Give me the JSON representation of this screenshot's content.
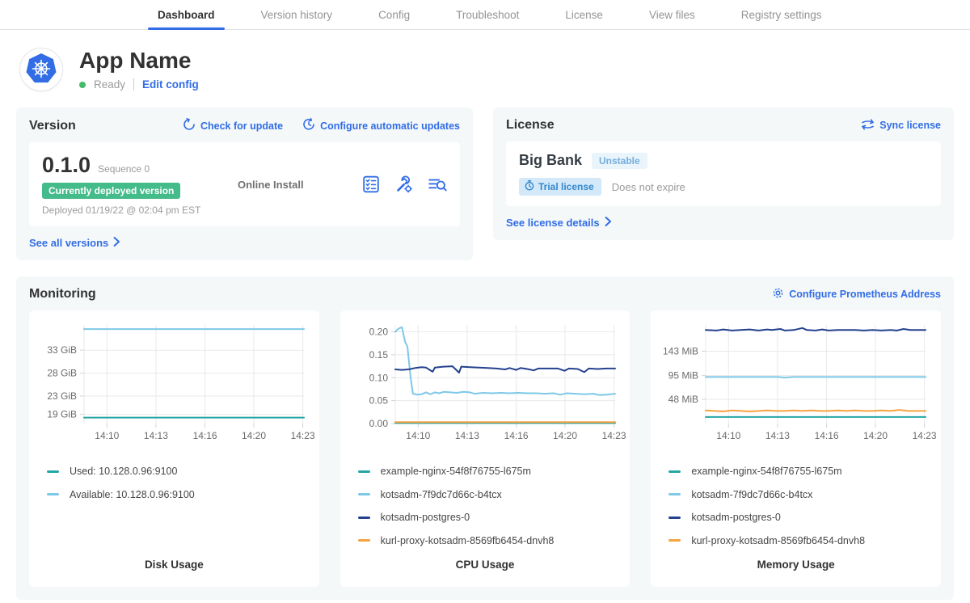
{
  "nav": {
    "tabs": [
      {
        "label": "Dashboard",
        "active": true
      },
      {
        "label": "Version history",
        "active": false
      },
      {
        "label": "Config",
        "active": false
      },
      {
        "label": "Troubleshoot",
        "active": false
      },
      {
        "label": "License",
        "active": false
      },
      {
        "label": "View files",
        "active": false
      },
      {
        "label": "Registry settings",
        "active": false
      }
    ]
  },
  "app_header": {
    "title": "App Name",
    "status": "Ready",
    "edit_config_label": "Edit config",
    "logo_icon": "kubernetes-helm-wheel"
  },
  "version_card": {
    "heading": "Version",
    "check_update_label": "Check for update",
    "configure_updates_label": "Configure automatic updates",
    "version_number": "0.1.0",
    "sequence_label": "Sequence 0",
    "deployed_badge": "Currently deployed version",
    "deployed_at": "Deployed 01/19/22 @ 02:04 pm EST",
    "install_type": "Online Install",
    "action_icons": [
      "preflight-checklist-icon",
      "wrench-gear-icon",
      "view-logs-icon"
    ],
    "see_all_label": "See all versions"
  },
  "license_card": {
    "heading": "License",
    "sync_label": "Sync license",
    "customer_name": "Big Bank",
    "channel_badge": "Unstable",
    "trial_badge": "Trial license",
    "expiry_text": "Does not expire",
    "details_label": "See license details"
  },
  "monitoring": {
    "heading": "Monitoring",
    "configure_label": "Configure Prometheus Address"
  },
  "colors": {
    "accent_blue": "#326de6",
    "status_green": "#44bb66",
    "badge_green": "#44bb8a",
    "series_teal": "#26a5a5",
    "series_light_blue": "#7ec8e8",
    "series_navy": "#24418e",
    "series_orange": "#f7a240"
  },
  "chart_data": [
    {
      "type": "line",
      "title": "Disk Usage",
      "ylim": [
        17,
        38.5
      ],
      "yticks": [
        {
          "v": 19,
          "label": "19 GiB"
        },
        {
          "v": 23,
          "label": "23 GiB"
        },
        {
          "v": 28,
          "label": "28 GiB"
        },
        {
          "v": 33,
          "label": "33 GiB"
        }
      ],
      "xticks": [
        {
          "p": 0.104,
          "label": "14:10"
        },
        {
          "p": 0.327,
          "label": "14:13"
        },
        {
          "p": 0.55,
          "label": "14:16"
        },
        {
          "p": 0.772,
          "label": "14:20"
        },
        {
          "p": 0.995,
          "label": "14:23"
        }
      ],
      "series": [
        {
          "name": "Used: 10.128.0.96:9100",
          "color": "#26a5a5",
          "points": [
            [
              0,
              18.3
            ],
            [
              1,
              18.3
            ]
          ]
        },
        {
          "name": "Available: 10.128.0.96:9100",
          "color": "#7ec8e8",
          "points": [
            [
              0,
              37.6
            ],
            [
              1,
              37.6
            ]
          ]
        }
      ]
    },
    {
      "type": "line",
      "title": "CPU Usage",
      "ylim": [
        0,
        0.215
      ],
      "yticks": [
        {
          "v": 0.0,
          "label": "0.00"
        },
        {
          "v": 0.05,
          "label": "0.05"
        },
        {
          "v": 0.1,
          "label": "0.10"
        },
        {
          "v": 0.15,
          "label": "0.15"
        },
        {
          "v": 0.2,
          "label": "0.20"
        }
      ],
      "xticks": [
        {
          "p": 0.104,
          "label": "14:10"
        },
        {
          "p": 0.327,
          "label": "14:13"
        },
        {
          "p": 0.55,
          "label": "14:16"
        },
        {
          "p": 0.772,
          "label": "14:20"
        },
        {
          "p": 0.995,
          "label": "14:23"
        }
      ],
      "series": [
        {
          "name": "example-nginx-54f8f76755-l675m",
          "color": "#26a5a5",
          "points": [
            [
              0,
              0.001
            ],
            [
              1,
              0.001
            ]
          ]
        },
        {
          "name": "kotsadm-7f9dc7d66c-b4tcx",
          "color": "#7ec8e8",
          "points": [
            [
              0,
              0.2
            ],
            [
              0.015,
              0.207
            ],
            [
              0.03,
              0.21
            ],
            [
              0.045,
              0.178
            ],
            [
              0.055,
              0.168
            ],
            [
              0.07,
              0.1
            ],
            [
              0.08,
              0.065
            ],
            [
              0.1,
              0.063
            ],
            [
              0.12,
              0.064
            ],
            [
              0.14,
              0.068
            ],
            [
              0.16,
              0.064
            ],
            [
              0.18,
              0.068
            ],
            [
              0.2,
              0.066
            ],
            [
              0.22,
              0.069
            ],
            [
              0.25,
              0.068
            ],
            [
              0.28,
              0.067
            ],
            [
              0.31,
              0.069
            ],
            [
              0.34,
              0.068
            ],
            [
              0.36,
              0.065
            ],
            [
              0.4,
              0.067
            ],
            [
              0.44,
              0.066
            ],
            [
              0.48,
              0.067
            ],
            [
              0.52,
              0.066
            ],
            [
              0.56,
              0.067
            ],
            [
              0.6,
              0.066
            ],
            [
              0.64,
              0.066
            ],
            [
              0.68,
              0.065
            ],
            [
              0.72,
              0.066
            ],
            [
              0.75,
              0.063
            ],
            [
              0.78,
              0.066
            ],
            [
              0.82,
              0.065
            ],
            [
              0.86,
              0.064
            ],
            [
              0.9,
              0.065
            ],
            [
              0.93,
              0.062
            ],
            [
              0.96,
              0.063
            ],
            [
              1,
              0.065
            ]
          ]
        },
        {
          "name": "kotsadm-postgres-0",
          "color": "#24418e",
          "points": [
            [
              0,
              0.118
            ],
            [
              0.03,
              0.117
            ],
            [
              0.06,
              0.118
            ],
            [
              0.09,
              0.121
            ],
            [
              0.12,
              0.123
            ],
            [
              0.14,
              0.122
            ],
            [
              0.17,
              0.113
            ],
            [
              0.18,
              0.122
            ],
            [
              0.22,
              0.124
            ],
            [
              0.26,
              0.125
            ],
            [
              0.29,
              0.111
            ],
            [
              0.3,
              0.124
            ],
            [
              0.34,
              0.123
            ],
            [
              0.38,
              0.122
            ],
            [
              0.42,
              0.121
            ],
            [
              0.46,
              0.12
            ],
            [
              0.5,
              0.118
            ],
            [
              0.52,
              0.121
            ],
            [
              0.55,
              0.117
            ],
            [
              0.57,
              0.121
            ],
            [
              0.6,
              0.119
            ],
            [
              0.63,
              0.116
            ],
            [
              0.65,
              0.12
            ],
            [
              0.7,
              0.12
            ],
            [
              0.74,
              0.12
            ],
            [
              0.77,
              0.115
            ],
            [
              0.79,
              0.12
            ],
            [
              0.83,
              0.119
            ],
            [
              0.86,
              0.112
            ],
            [
              0.88,
              0.12
            ],
            [
              0.92,
              0.119
            ],
            [
              0.96,
              0.12
            ],
            [
              1,
              0.12
            ]
          ]
        },
        {
          "name": "kurl-proxy-kotsadm-8569fb6454-dnvh8",
          "color": "#f7a240",
          "points": [
            [
              0,
              0.003
            ],
            [
              1,
              0.003
            ]
          ]
        }
      ]
    },
    {
      "type": "line",
      "title": "Memory Usage",
      "ylim": [
        0,
        195
      ],
      "yticks": [
        {
          "v": 48,
          "label": "48 MiB"
        },
        {
          "v": 95,
          "label": "95 MiB"
        },
        {
          "v": 143,
          "label": "143 MiB"
        }
      ],
      "xticks": [
        {
          "p": 0.104,
          "label": "14:10"
        },
        {
          "p": 0.327,
          "label": "14:13"
        },
        {
          "p": 0.55,
          "label": "14:16"
        },
        {
          "p": 0.772,
          "label": "14:20"
        },
        {
          "p": 0.995,
          "label": "14:23"
        }
      ],
      "series": [
        {
          "name": "example-nginx-54f8f76755-l675m",
          "color": "#26a5a5",
          "points": [
            [
              0,
              13
            ],
            [
              1,
              13
            ]
          ]
        },
        {
          "name": "kotsadm-7f9dc7d66c-b4tcx",
          "color": "#7ec8e8",
          "points": [
            [
              0,
              92
            ],
            [
              0.33,
              92
            ],
            [
              0.36,
              91
            ],
            [
              0.4,
              92
            ],
            [
              1,
              92
            ]
          ]
        },
        {
          "name": "kotsadm-postgres-0",
          "color": "#24418e",
          "points": [
            [
              0,
              185
            ],
            [
              0.05,
              184
            ],
            [
              0.08,
              186
            ],
            [
              0.12,
              184
            ],
            [
              0.16,
              185
            ],
            [
              0.2,
              186
            ],
            [
              0.24,
              184
            ],
            [
              0.28,
              186
            ],
            [
              0.3,
              185
            ],
            [
              0.34,
              187
            ],
            [
              0.36,
              184
            ],
            [
              0.4,
              185
            ],
            [
              0.44,
              189
            ],
            [
              0.46,
              185
            ],
            [
              0.5,
              184
            ],
            [
              0.53,
              186
            ],
            [
              0.56,
              184
            ],
            [
              0.6,
              185
            ],
            [
              0.64,
              185
            ],
            [
              0.68,
              185
            ],
            [
              0.72,
              184
            ],
            [
              0.76,
              185
            ],
            [
              0.8,
              184
            ],
            [
              0.84,
              185
            ],
            [
              0.87,
              184
            ],
            [
              0.9,
              187
            ],
            [
              0.93,
              185
            ],
            [
              0.96,
              185
            ],
            [
              1,
              185
            ]
          ]
        },
        {
          "name": "kurl-proxy-kotsadm-8569fb6454-dnvh8",
          "color": "#f7a240",
          "points": [
            [
              0,
              26
            ],
            [
              0.04,
              25
            ],
            [
              0.08,
              24
            ],
            [
              0.12,
              26
            ],
            [
              0.16,
              25
            ],
            [
              0.2,
              24
            ],
            [
              0.24,
              25
            ],
            [
              0.28,
              26
            ],
            [
              0.32,
              25
            ],
            [
              0.36,
              25
            ],
            [
              0.4,
              26
            ],
            [
              0.44,
              25
            ],
            [
              0.48,
              26
            ],
            [
              0.52,
              25
            ],
            [
              0.56,
              25
            ],
            [
              0.6,
              26
            ],
            [
              0.64,
              25
            ],
            [
              0.68,
              26
            ],
            [
              0.72,
              25
            ],
            [
              0.76,
              25
            ],
            [
              0.8,
              26
            ],
            [
              0.84,
              25
            ],
            [
              0.88,
              27
            ],
            [
              0.92,
              25
            ],
            [
              0.96,
              25
            ],
            [
              1,
              25
            ]
          ]
        }
      ]
    }
  ]
}
